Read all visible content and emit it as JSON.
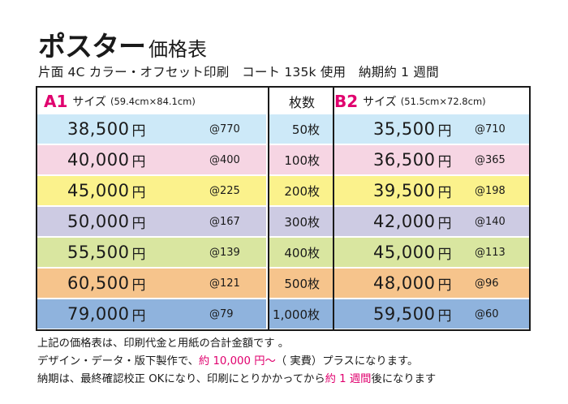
{
  "title": {
    "main": "ポスター",
    "sub": "価格表"
  },
  "subtitle": "片面 4C カラー・オフセット印刷　コート 135k 使用　納期約 1 週間",
  "header": {
    "a1_code": "A1",
    "a1_label": "サイズ",
    "a1_dims": "(59.4cm×84.1cm)",
    "qty_label": "枚数",
    "b2_code": "B2",
    "b2_label": "サイズ",
    "b2_dims": "(51.5cm×72.8cm)"
  },
  "rows": [
    {
      "a1_price": "38,500",
      "a1_yen": "円",
      "a1_unit": "@770",
      "qty": "50枚",
      "b2_price": "35,500",
      "b2_yen": "円",
      "b2_unit": "@710",
      "color": "#cde9f8"
    },
    {
      "a1_price": "40,000",
      "a1_yen": "円",
      "a1_unit": "@400",
      "qty": "100枚",
      "b2_price": "36,500",
      "b2_yen": "円",
      "b2_unit": "@365",
      "color": "#f6d5e3"
    },
    {
      "a1_price": "45,000",
      "a1_yen": "円",
      "a1_unit": "@225",
      "qty": "200枚",
      "b2_price": "39,500",
      "b2_yen": "円",
      "b2_unit": "@198",
      "color": "#fbf28c"
    },
    {
      "a1_price": "50,000",
      "a1_yen": "円",
      "a1_unit": "@167",
      "qty": "300枚",
      "b2_price": "42,000",
      "b2_yen": "円",
      "b2_unit": "@140",
      "color": "#cdcbe3"
    },
    {
      "a1_price": "55,500",
      "a1_yen": "円",
      "a1_unit": "@139",
      "qty": "400枚",
      "b2_price": "45,000",
      "b2_yen": "円",
      "b2_unit": "@113",
      "color": "#d9e6a0"
    },
    {
      "a1_price": "60,500",
      "a1_yen": "円",
      "a1_unit": "@121",
      "qty": "500枚",
      "b2_price": "48,000",
      "b2_yen": "円",
      "b2_unit": "@96",
      "color": "#f6c48c"
    },
    {
      "a1_price": "79,000",
      "a1_yen": "円",
      "a1_unit": "@79",
      "qty": "1,000枚",
      "b2_price": "59,500",
      "b2_yen": "円",
      "b2_unit": "@60",
      "color": "#8fb3dd"
    }
  ],
  "notes": {
    "line1": "上記の価格表は、印刷代金と用紙の合計金額です 。",
    "line2_a": "デザイン・データ・版下製作で、",
    "line2_red": "約 10,000 円〜",
    "line2_b": "（ 実費）プラスになります。",
    "line3_a": "納期は、最終確認校正 OKになり、印刷にとりかかってから",
    "line3_red": "約 1 週間",
    "line3_b": "後になります"
  },
  "colors": {
    "accent": "#e0006e",
    "border": "#1a1a1a"
  }
}
